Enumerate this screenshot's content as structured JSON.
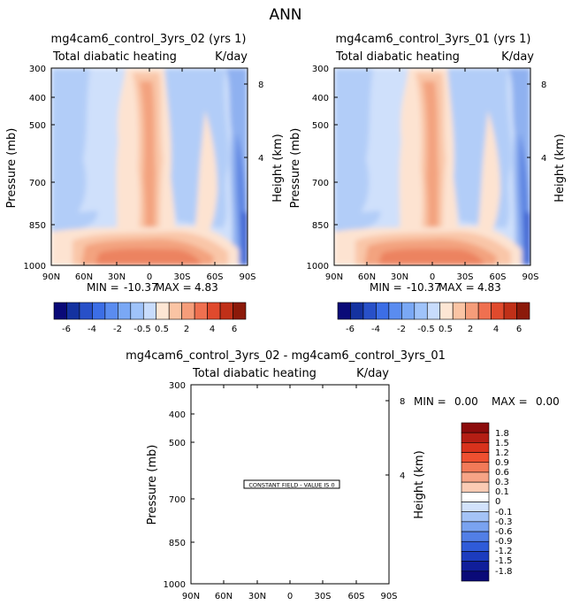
{
  "figure_title": "ANN",
  "chart_data": [
    {
      "type": "heatmap",
      "title": "mg4cam6_control_3yrs_02 (yrs 1)",
      "subtitle_left": "Total diabatic heating",
      "subtitle_right": "K/day",
      "xlabel": "",
      "ylabel": "Pressure (mb)",
      "ylabel_right": "Height (km)",
      "x_ticks": [
        "90N",
        "60N",
        "30N",
        "0",
        "30S",
        "60S",
        "90S"
      ],
      "y_ticks": [
        "300",
        "400",
        "500",
        "700",
        "850",
        "1000"
      ],
      "y_ticks_right": [
        "8",
        "4"
      ],
      "xlim": [
        90,
        -90
      ],
      "ylim": [
        1000,
        300
      ],
      "stats": {
        "min_label": "MIN =",
        "min": "-10.37",
        "max_label": "MAX =",
        "max": "4.83"
      },
      "colorbar_labels": [
        "-6",
        "-4",
        "-2",
        "-0.5",
        "0.5",
        "2",
        "4",
        "6"
      ],
      "colorbar_colors": [
        "#0a0a78",
        "#1432a0",
        "#2850c8",
        "#3c6ee6",
        "#5a8cf0",
        "#7aa8f5",
        "#9fc3fa",
        "#c8dcfc",
        "#fde6d4",
        "#fac4a4",
        "#f59d7a",
        "#ef7050",
        "#e04a2d",
        "#c03018",
        "#8c1a0a"
      ]
    },
    {
      "type": "heatmap",
      "title": "mg4cam6_control_3yrs_01 (yrs 1)",
      "subtitle_left": "Total diabatic heating",
      "subtitle_right": "K/day",
      "xlabel": "",
      "ylabel": "Pressure (mb)",
      "ylabel_right": "Height (km)",
      "x_ticks": [
        "90N",
        "60N",
        "30N",
        "0",
        "30S",
        "60S",
        "90S"
      ],
      "y_ticks": [
        "300",
        "400",
        "500",
        "700",
        "850",
        "1000"
      ],
      "y_ticks_right": [
        "8",
        "4"
      ],
      "xlim": [
        90,
        -90
      ],
      "ylim": [
        1000,
        300
      ],
      "stats": {
        "min_label": "MIN =",
        "min": "-10.37",
        "max_label": "MAX =",
        "max": "4.83"
      },
      "colorbar_labels": [
        "-6",
        "-4",
        "-2",
        "-0.5",
        "0.5",
        "2",
        "4",
        "6"
      ],
      "colorbar_colors": [
        "#0a0a78",
        "#1432a0",
        "#2850c8",
        "#3c6ee6",
        "#5a8cf0",
        "#7aa8f5",
        "#9fc3fa",
        "#c8dcfc",
        "#fde6d4",
        "#fac4a4",
        "#f59d7a",
        "#ef7050",
        "#e04a2d",
        "#c03018",
        "#8c1a0a"
      ]
    },
    {
      "type": "heatmap",
      "title": "mg4cam6_control_3yrs_02 - mg4cam6_control_3yrs_01",
      "subtitle_left": "Total diabatic heating",
      "subtitle_right": "K/day",
      "xlabel": "",
      "ylabel": "Pressure (mb)",
      "ylabel_right": "Height (km)",
      "x_ticks": [
        "90N",
        "60N",
        "30N",
        "0",
        "30S",
        "60S",
        "90S"
      ],
      "y_ticks": [
        "300",
        "400",
        "500",
        "700",
        "850",
        "1000"
      ],
      "y_ticks_right": [
        "8",
        "4"
      ],
      "xlim": [
        90,
        -90
      ],
      "ylim": [
        1000,
        300
      ],
      "stats": {
        "min_label": "MIN =",
        "min": "0.00",
        "max_label": "MAX =",
        "max": "0.00"
      },
      "annotation": "CONSTANT FIELD - VALUE IS 0",
      "colorbar_labels": [
        "1.8",
        "1.5",
        "1.2",
        "0.9",
        "0.6",
        "0.3",
        "0.1",
        "0",
        "-0.1",
        "-0.3",
        "-0.6",
        "-0.9",
        "-1.2",
        "-1.5",
        "-1.8"
      ],
      "colorbar_colors": [
        "#8c0c0c",
        "#b41e14",
        "#d8321c",
        "#ee5030",
        "#f27a58",
        "#f7a486",
        "#fbcbb4",
        "#ffffff",
        "#d2e2fb",
        "#a4c3f6",
        "#7aa3f0",
        "#527fe6",
        "#2f5bd8",
        "#1c3cbe",
        "#101e9a",
        "#0a0a78"
      ]
    }
  ]
}
